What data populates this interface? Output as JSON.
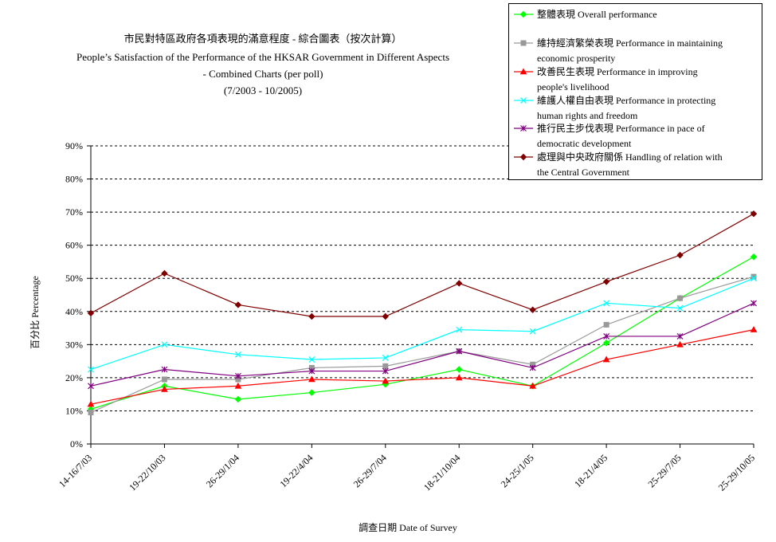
{
  "chart_data": {
    "type": "line",
    "title": [
      "市民對特區政府各項表現的滿意程度 - 綜合圖表（按次計算）",
      "People’s Satisfaction of the Performance of the HKSAR Government in Different Aspects",
      "- Combined Charts (per poll)",
      "(7/2003 - 10/2005)"
    ],
    "xlabel": "調查日期 Date of Survey",
    "ylabel": "百分比 Percentage",
    "ylim": [
      0,
      90
    ],
    "y_ticks": [
      "0%",
      "10%",
      "20%",
      "30%",
      "40%",
      "50%",
      "60%",
      "70%",
      "80%",
      "90%"
    ],
    "y_tick_values": [
      0,
      10,
      20,
      30,
      40,
      50,
      60,
      70,
      80,
      90
    ],
    "grid": true,
    "legend_position": "top-right",
    "categories": [
      "14-16/7/03",
      "19-22/10/03",
      "26-29/1/04",
      "19-22/4/04",
      "26-29/7/04",
      "18-21/10/04",
      "24-25/1/05",
      "18-21/4/05",
      "25-29/7/05",
      "25-29/10/05"
    ],
    "series": [
      {
        "name": "整體表現 Overall performance",
        "legend_lines": [
          "整體表現 Overall performance"
        ],
        "color": "#00ff00",
        "marker": "diamond",
        "values": [
          10.5,
          17.5,
          13.5,
          15.5,
          18.0,
          22.5,
          17.5,
          30.5,
          44.0,
          56.5
        ]
      },
      {
        "name": "維持經濟繁榮表現 Performance in maintaining economic prosperity",
        "legend_lines": [
          "維持經濟繁榮表現 Performance in maintaining",
          "economic prosperity"
        ],
        "color": "#999999",
        "marker": "square",
        "values": [
          9.5,
          19.5,
          19.5,
          23.0,
          23.5,
          28.0,
          24.0,
          36.0,
          44.0,
          50.5
        ]
      },
      {
        "name": "改善民生表現 Performance in improving people's livelihood",
        "legend_lines": [
          "改善民生表現 Performance in improving",
          "people's livelihood"
        ],
        "color": "#ff0000",
        "marker": "triangle",
        "values": [
          12.0,
          16.5,
          17.5,
          19.5,
          19.0,
          20.0,
          17.5,
          25.5,
          30.0,
          34.5
        ]
      },
      {
        "name": "維護人權自由表現 Performance in protecting human rights and freedom",
        "legend_lines": [
          "維護人權自由表現 Performance in protecting",
          "human rights and freedom"
        ],
        "color": "#00ffff",
        "marker": "x",
        "values": [
          22.5,
          30.0,
          27.0,
          25.5,
          26.0,
          34.5,
          34.0,
          42.5,
          41.0,
          50.0
        ]
      },
      {
        "name": "推行民主步伐表現 Performance in pace of democratic development",
        "legend_lines": [
          "推行民主步伐表現 Performance in pace of",
          "democratic development"
        ],
        "color": "#800080",
        "marker": "star",
        "values": [
          17.5,
          22.5,
          20.5,
          22.0,
          22.0,
          28.0,
          23.0,
          32.5,
          32.5,
          42.5
        ]
      },
      {
        "name": "處理與中央政府關係 Handling of relation with the Central Government",
        "legend_lines": [
          "處理與中央政府關係 Handling of relation with",
          "the Central Government"
        ],
        "color": "#800000",
        "marker": "diamond",
        "values": [
          39.5,
          51.5,
          42.0,
          38.5,
          38.5,
          48.5,
          40.5,
          49.0,
          57.0,
          69.5
        ]
      }
    ]
  }
}
